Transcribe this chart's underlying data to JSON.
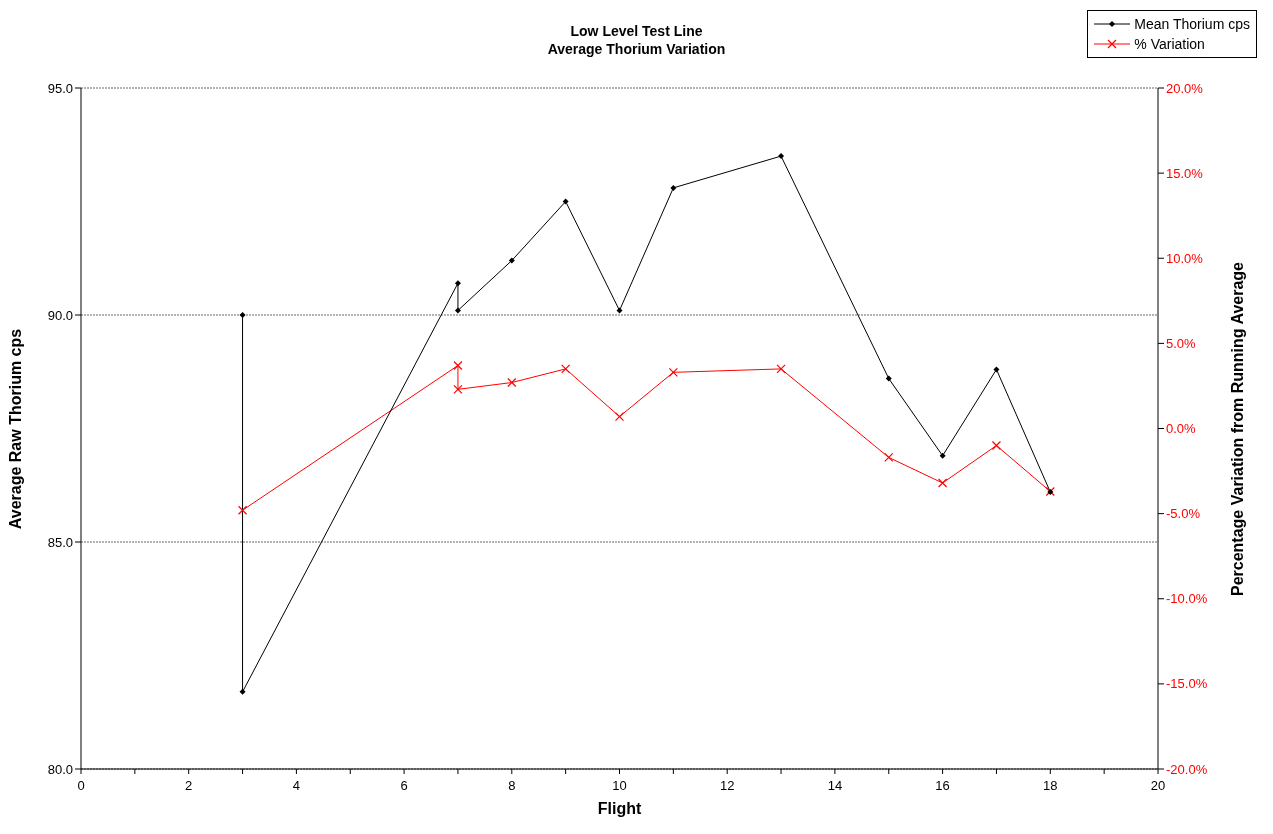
{
  "chart_data": {
    "type": "line",
    "title": "Low Level Test Line",
    "subtitle": "Average Thorium Variation",
    "xlabel": "Flight",
    "ylabel": "Average Raw Thorium cps",
    "y2label": "Percentage Variation from Running Average",
    "series": [
      {
        "name": "Mean Thorium cps",
        "color": "#000000",
        "marker": "diamond",
        "x": [
          3,
          3,
          7,
          7,
          8,
          9,
          10,
          11,
          13,
          15,
          16,
          17,
          18
        ],
        "values": [
          90.0,
          81.7,
          90.7,
          90.1,
          91.2,
          92.5,
          90.1,
          92.8,
          93.5,
          88.6,
          86.9,
          88.8,
          86.1
        ]
      },
      {
        "name": "% Variation",
        "color": "#ff0000",
        "marker": "cross",
        "axis": "y2",
        "x": [
          3,
          7,
          7,
          8,
          9,
          10,
          11,
          13,
          15,
          16,
          17,
          18
        ],
        "values": [
          -4.8,
          3.7,
          2.3,
          2.7,
          3.5,
          0.7,
          3.3,
          3.5,
          -1.7,
          -3.2,
          -1.0,
          -3.7
        ]
      }
    ],
    "xlim": [
      0,
      20
    ],
    "xticks": [
      0,
      {
        "value": 1,
        "label": null
      },
      2,
      {
        "value": 3,
        "label": null
      },
      4,
      {
        "value": 5,
        "label": null
      },
      6,
      {
        "value": 7,
        "label": null
      },
      8,
      {
        "value": 9,
        "label": null
      },
      10,
      {
        "value": 11,
        "label": null
      },
      12,
      {
        "value": 13,
        "label": null
      },
      14,
      {
        "value": 15,
        "label": null
      },
      16,
      {
        "value": 17,
        "label": null
      },
      18,
      {
        "value": 19,
        "label": null
      },
      20
    ],
    "ylim": [
      80,
      95
    ],
    "yticks": [
      {
        "value": 80,
        "label": "80.0"
      },
      {
        "value": 85,
        "label": "85.0"
      },
      {
        "value": 90,
        "label": "90.0"
      },
      {
        "value": 95,
        "label": "95.0"
      }
    ],
    "y2lim": [
      -20,
      20
    ],
    "y2ticks": [
      {
        "value": -20,
        "label": "-20.0%"
      },
      {
        "value": -15,
        "label": "-15.0%"
      },
      {
        "value": -10,
        "label": "-10.0%"
      },
      {
        "value": -5,
        "label": "-5.0%"
      },
      {
        "value": 0,
        "label": "0.0%"
      },
      {
        "value": 5,
        "label": "5.0%"
      },
      {
        "value": 10,
        "label": "10.0%"
      },
      {
        "value": 15,
        "label": "15.0%"
      },
      {
        "value": 20,
        "label": "20.0%"
      }
    ],
    "grid": "y",
    "legend": "top right",
    "line_style": "solid"
  }
}
